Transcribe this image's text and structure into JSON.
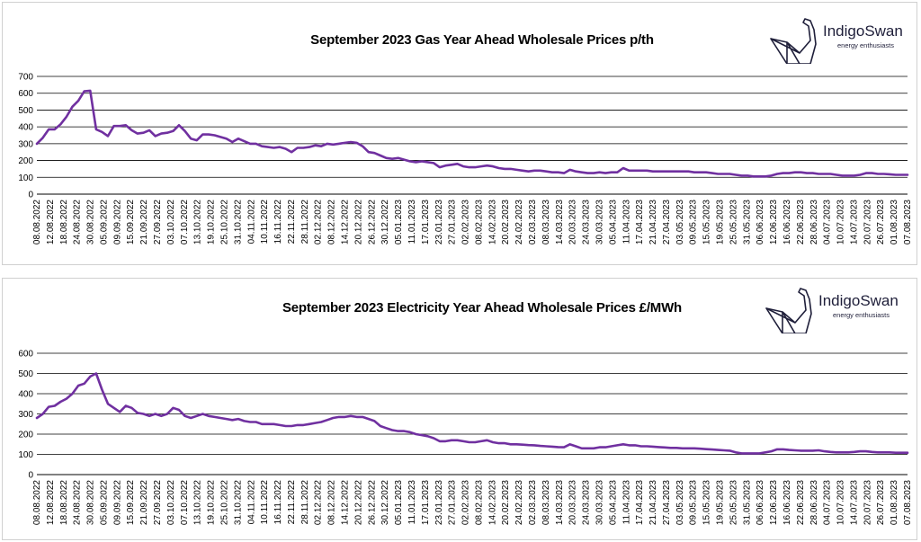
{
  "brand": {
    "name": "IndigoSwan",
    "tagline": "energy enthusiasts"
  },
  "chart_data": [
    {
      "type": "line",
      "title": "September 2023 Gas Year Ahead Wholesale Prices p/th",
      "xlabel": "",
      "ylabel": "",
      "ylim": [
        0,
        700
      ],
      "yticks": [
        0,
        100,
        200,
        300,
        400,
        500,
        600,
        700
      ],
      "grid": "horizontal",
      "line_color": "#7030a0",
      "x_tick_labels": [
        "08.08.2022",
        "12.08.2022",
        "18.08.2022",
        "24.08.2022",
        "30.08.2022",
        "05.09.2022",
        "09.09.2022",
        "15.09.2022",
        "21.09.2022",
        "27.09.2022",
        "03.10.2022",
        "07.10.2022",
        "13.10.2022",
        "19.10.2022",
        "25.10.2022",
        "31.10.2022",
        "04.11.2022",
        "10.11.2022",
        "16.11.2022",
        "22.11.2022",
        "28.11.2022",
        "02.12.2022",
        "08.12.2022",
        "14.12.2022",
        "20.12.2022",
        "26.12.2022",
        "30.12.2022",
        "05.01.2023",
        "11.01.2023",
        "17.01.2023",
        "23.01.2023",
        "27.01.2023",
        "02.02.2023",
        "08.02.2023",
        "14.02.2023",
        "20.02.2023",
        "24.02.2023",
        "02.03.2023",
        "08.03.2023",
        "14.03.2023",
        "20.03.2023",
        "24.03.2023",
        "30.03.2023",
        "05.04.2023",
        "11.04.2023",
        "17.04.2023",
        "21.04.2023",
        "27.04.2023",
        "03.05.2023",
        "09.05.2023",
        "15.05.2023",
        "19.05.2023",
        "25.05.2023",
        "31.05.2023",
        "06.06.2023",
        "12.06.2023",
        "16.06.2023",
        "22.06.2023",
        "28.06.2023",
        "04.07.2023",
        "10.07.2023",
        "14.07.2023",
        "20.07.2023",
        "26.07.2023",
        "01.08.2023",
        "07.08.2023"
      ],
      "series": [
        {
          "values": [
            300,
            335,
            385,
            385,
            415,
            460,
            520,
            555,
            612,
            615,
            385,
            370,
            345,
            405,
            405,
            410,
            380,
            360,
            365,
            380,
            345,
            360,
            365,
            375,
            410,
            375,
            330,
            320,
            355,
            355,
            350,
            340,
            330,
            310,
            330,
            315,
            300,
            300,
            285,
            280,
            275,
            280,
            270,
            250,
            275,
            275,
            280,
            290,
            285,
            300,
            295,
            300,
            305,
            310,
            305,
            285,
            250,
            245,
            230,
            215,
            210,
            215,
            205,
            195,
            190,
            195,
            190,
            185,
            160,
            170,
            175,
            180,
            165,
            160,
            160,
            165,
            170,
            165,
            155,
            150,
            150,
            145,
            140,
            135,
            140,
            140,
            135,
            130,
            130,
            125,
            145,
            135,
            130,
            125,
            125,
            130,
            125,
            130,
            130,
            155,
            140,
            140,
            140,
            140,
            135,
            135,
            135,
            135,
            135,
            135,
            135,
            130,
            130,
            130,
            125,
            120,
            120,
            120,
            115,
            110,
            110,
            105,
            105,
            105,
            110,
            120,
            125,
            125,
            130,
            130,
            125,
            125,
            120,
            120,
            120,
            115,
            110,
            110,
            110,
            115,
            125,
            125,
            120,
            120,
            118,
            115,
            115,
            115
          ]
        }
      ]
    },
    {
      "type": "line",
      "title": "September 2023 Electricity Year Ahead Wholesale Prices £/MWh",
      "xlabel": "",
      "ylabel": "",
      "ylim": [
        0,
        600
      ],
      "yticks": [
        0,
        100,
        200,
        300,
        400,
        500,
        600
      ],
      "grid": "horizontal",
      "line_color": "#7030a0",
      "x_tick_labels": [
        "08.08.2022",
        "12.08.2022",
        "18.08.2022",
        "24.08.2022",
        "30.08.2022",
        "05.09.2022",
        "09.09.2022",
        "15.09.2022",
        "21.09.2022",
        "27.09.2022",
        "03.10.2022",
        "07.10.2022",
        "13.10.2022",
        "19.10.2022",
        "25.10.2022",
        "31.10.2022",
        "04.11.2022",
        "10.11.2022",
        "16.11.2022",
        "22.11.2022",
        "28.11.2022",
        "02.12.2022",
        "08.12.2022",
        "14.12.2022",
        "20.12.2022",
        "26.12.2022",
        "30.12.2022",
        "05.01.2023",
        "11.01.2023",
        "17.01.2023",
        "23.01.2023",
        "27.01.2023",
        "02.02.2023",
        "08.02.2023",
        "14.02.2023",
        "20.02.2023",
        "24.02.2023",
        "02.03.2023",
        "08.03.2023",
        "14.03.2023",
        "20.03.2023",
        "24.03.2023",
        "30.03.2023",
        "05.04.2023",
        "11.04.2023",
        "17.04.2023",
        "21.04.2023",
        "27.04.2023",
        "03.05.2023",
        "09.05.2023",
        "15.05.2023",
        "19.05.2023",
        "25.05.2023",
        "31.05.2023",
        "06.06.2023",
        "12.06.2023",
        "16.06.2023",
        "22.06.2023",
        "28.06.2023",
        "04.07.2023",
        "10.07.2023",
        "14.07.2023",
        "20.07.2023",
        "26.07.2023",
        "01.08.2023",
        "07.08.2023"
      ],
      "series": [
        {
          "values": [
            280,
            300,
            335,
            340,
            360,
            375,
            400,
            440,
            450,
            485,
            500,
            420,
            350,
            330,
            310,
            340,
            330,
            305,
            300,
            290,
            300,
            290,
            300,
            330,
            320,
            290,
            280,
            290,
            300,
            290,
            285,
            280,
            275,
            270,
            275,
            265,
            260,
            260,
            250,
            250,
            250,
            245,
            240,
            240,
            245,
            245,
            250,
            255,
            260,
            270,
            280,
            285,
            285,
            290,
            285,
            285,
            275,
            265,
            240,
            230,
            220,
            215,
            215,
            210,
            200,
            195,
            190,
            180,
            165,
            165,
            170,
            170,
            165,
            160,
            160,
            165,
            170,
            160,
            155,
            155,
            150,
            150,
            148,
            146,
            145,
            142,
            140,
            138,
            136,
            135,
            150,
            140,
            130,
            130,
            130,
            135,
            135,
            140,
            145,
            150,
            145,
            145,
            140,
            140,
            138,
            136,
            134,
            132,
            132,
            130,
            130,
            130,
            128,
            126,
            124,
            122,
            120,
            118,
            110,
            105,
            105,
            105,
            105,
            110,
            115,
            125,
            125,
            122,
            120,
            118,
            118,
            118,
            120,
            115,
            112,
            110,
            110,
            110,
            112,
            115,
            115,
            112,
            110,
            110,
            110,
            108,
            108,
            108
          ]
        }
      ]
    }
  ]
}
